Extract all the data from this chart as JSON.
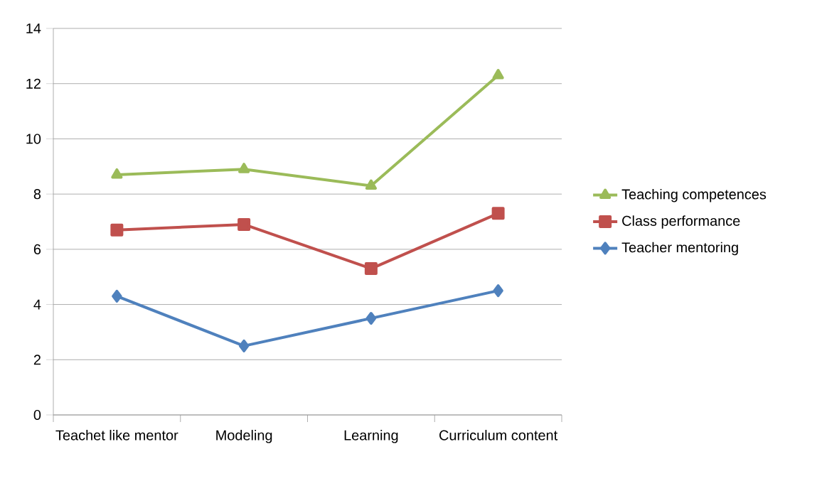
{
  "chart_data": {
    "type": "line",
    "categories": [
      "Teachet like mentor",
      "Modeling",
      "Learning",
      "Curriculum content"
    ],
    "series": [
      {
        "name": "Teaching competences",
        "color": "#9bbb59",
        "marker": "triangle",
        "values": [
          8.7,
          8.9,
          8.3,
          12.3
        ]
      },
      {
        "name": "Class performance",
        "color": "#c0504d",
        "marker": "square",
        "values": [
          6.7,
          6.9,
          5.3,
          7.3
        ]
      },
      {
        "name": "Teacher mentoring",
        "color": "#4f81bd",
        "marker": "diamond",
        "values": [
          4.3,
          2.5,
          3.5,
          4.5
        ]
      }
    ],
    "ylim": [
      0,
      14
    ],
    "yticks": [
      0,
      2,
      4,
      6,
      8,
      10,
      12,
      14
    ],
    "grid": "y",
    "legend": "right",
    "line_style": "solid"
  }
}
